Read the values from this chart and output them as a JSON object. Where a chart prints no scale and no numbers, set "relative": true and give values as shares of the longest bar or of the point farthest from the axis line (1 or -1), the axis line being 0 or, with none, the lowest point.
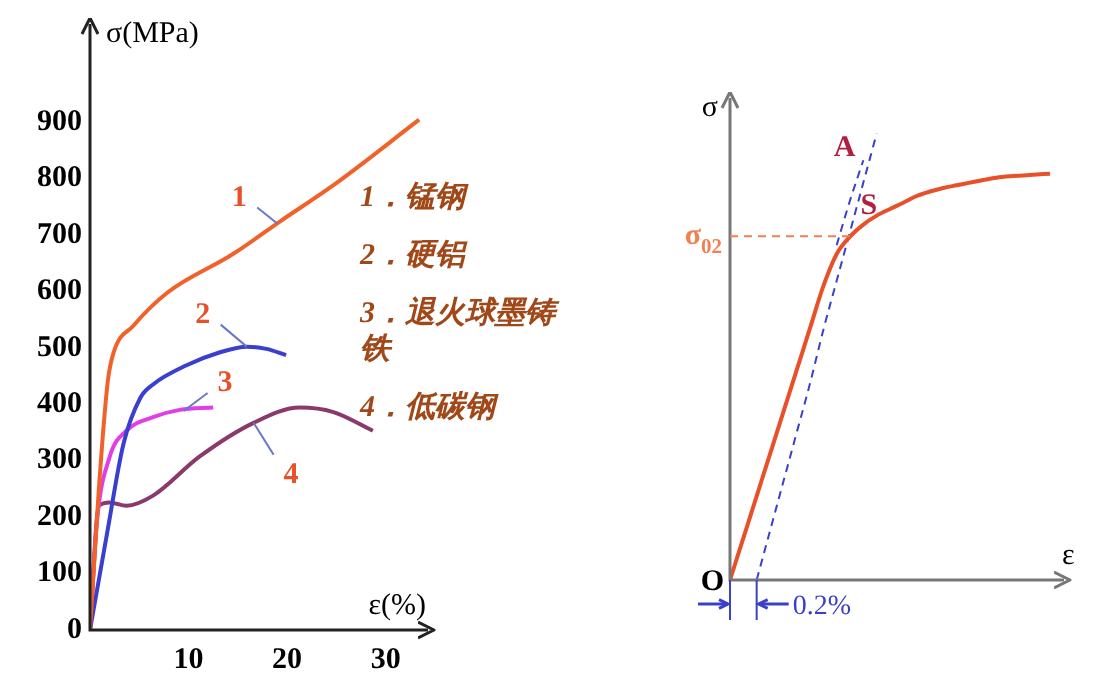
{
  "chart_data": [
    {
      "type": "line",
      "xlabel": "ε(%)",
      "ylabel": "σ(MPa)",
      "xlim": [
        0,
        34.5
      ],
      "ylim": [
        0,
        1070
      ],
      "xticks": [
        10,
        20,
        30
      ],
      "yticks": [
        0,
        100,
        200,
        300,
        400,
        500,
        600,
        700,
        800,
        900
      ],
      "grid": false,
      "legend": false,
      "series": [
        {
          "color": "#f0622a",
          "x": [
            0,
            0.9,
            1.8,
            2.4,
            4.4,
            7.8,
            14.5,
            19.3,
            24.7,
            33.4
          ],
          "values": [
            0,
            250,
            440,
            492,
            539,
            597,
            666,
            724,
            788,
            904
          ]
        },
        {
          "color": "#3a3fd0",
          "x": [
            0,
            1.7,
            3.4,
            5.1,
            6.4,
            9.8,
            13.2,
            15.9,
            17.9,
            19.9
          ],
          "values": [
            0,
            168,
            330,
            411,
            435,
            469,
            492,
            502,
            498,
            487
          ]
        },
        {
          "color": "#e23ee6",
          "x": [
            0,
            0.7,
            2.0,
            3.7,
            6.4,
            9.1,
            12.5
          ],
          "values": [
            0,
            191,
            307,
            353,
            377,
            390,
            394
          ]
        },
        {
          "color": "#8a3a6a",
          "x": [
            0,
            0.9,
            2.0,
            3.7,
            6.4,
            11.1,
            16.6,
            21.3,
            24.7,
            28.7
          ],
          "values": [
            0,
            220,
            226,
            220,
            238,
            307,
            367,
            394,
            386,
            353
          ]
        }
      ],
      "annotations": [
        {
          "text": "1",
          "x": 19,
          "y": 720
        },
        {
          "text": "2",
          "x": 15.9,
          "y": 502
        },
        {
          "text": "3",
          "x": 9.5,
          "y": 388
        },
        {
          "text": "4",
          "x": 16.6,
          "y": 367
        },
        "1．锰钢",
        "2．硬铝",
        "3．退火球墨铸铁",
        "4．低碳钢"
      ]
    },
    {
      "type": "line",
      "relative": true,
      "xlabel": "ε",
      "ylabel": "σ",
      "grid": false,
      "legend": false,
      "categories": [
        null,
        null,
        null,
        null,
        null,
        null,
        null,
        null,
        null,
        null,
        null,
        null,
        null,
        null,
        null,
        null,
        null,
        null,
        null,
        null,
        null,
        null,
        null,
        null,
        null
      ],
      "series": [
        {
          "color": "#e8502a",
          "values": [
            0,
            0.094,
            0.188,
            0.282,
            0.376,
            0.47,
            0.564,
            0.658,
            0.73,
            0.769,
            0.796,
            0.816,
            0.831,
            0.845,
            0.86,
            0.87,
            0.878,
            0.884,
            0.89,
            0.896,
            0.901,
            0.904,
            0.906,
            0.908,
            0.91
          ]
        },
        {
          "color": "#3a40c8",
          "line_style": "dashed",
          "values": [
            null,
            null,
            null,
            null,
            null,
            null,
            null,
            null,
            0.75,
            0.85,
            0.94,
            null,
            null,
            null,
            null,
            null,
            null,
            null,
            null,
            null,
            null,
            null,
            null,
            null,
            null
          ]
        },
        {
          "color": "#3a40c8",
          "line_style": "dashed",
          "values": [
            null,
            null,
            0,
            0.11,
            0.22,
            0.33,
            0.44,
            0.56,
            0.67,
            0.78,
            0.89,
            1.0,
            null,
            null,
            null,
            null,
            null,
            null,
            null,
            null,
            null,
            null,
            null,
            null,
            null
          ]
        }
      ],
      "ref_lines": [
        {
          "axis": "y",
          "value": 0.77,
          "label": "σ$_{02}$",
          "color": "#f08050",
          "line_style": "dashed"
        }
      ],
      "annotations": [
        "A",
        "S",
        "O",
        "0.2%"
      ]
    }
  ]
}
